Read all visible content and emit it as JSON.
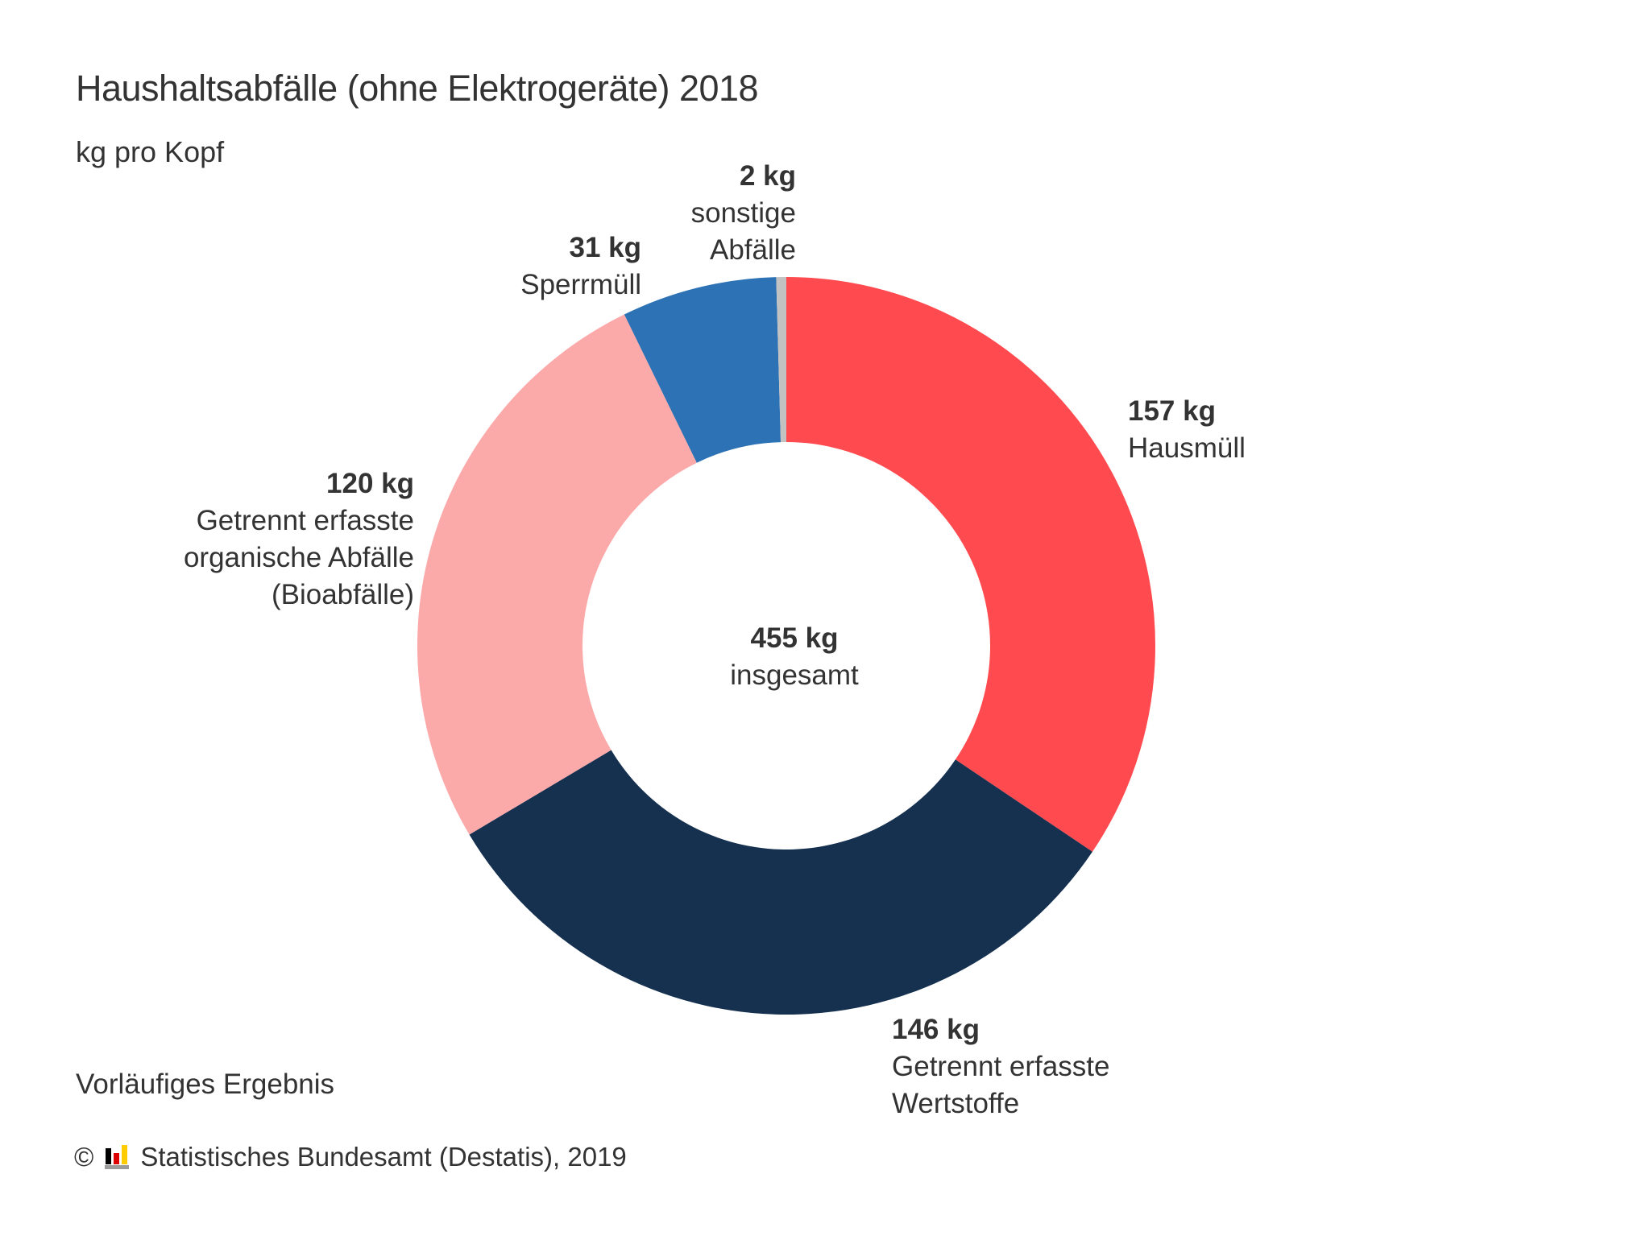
{
  "chart_data": {
    "type": "pie",
    "variant": "donut",
    "title": "Haushaltsabfälle (ohne Elektrogeräte) 2018",
    "subtitle": "kg pro Kopf",
    "unit": "kg",
    "start_angle": "12 o'clock, clockwise",
    "total": {
      "value": 455,
      "value_label": "455 kg",
      "label": "insgesamt"
    },
    "slices": [
      {
        "name": "Hausmüll",
        "value": 157,
        "value_label": "157 kg",
        "label_lines": [
          "Hausmüll"
        ],
        "color": "#FF4B4F"
      },
      {
        "name": "Getrennt erfasste Wertstoffe",
        "value": 146,
        "value_label": "146 kg",
        "label_lines": [
          "Getrennt erfasste",
          "Wertstoffe"
        ],
        "color": "#163150"
      },
      {
        "name": "Getrennt erfasste organische Abfälle (Bioabfälle)",
        "value": 120,
        "value_label": "120 kg",
        "label_lines": [
          "Getrennt erfasste",
          "organische Abfälle",
          "(Bioabfälle)"
        ],
        "color": "#FCA9AA"
      },
      {
        "name": "Sperrmüll",
        "value": 31,
        "value_label": "31 kg",
        "label_lines": [
          "Sperrmüll"
        ],
        "color": "#2C72B4"
      },
      {
        "name": "sonstige Abfälle",
        "value": 2,
        "value_label": "2 kg",
        "label_lines": [
          "sonstige",
          "Abfälle"
        ],
        "color": "#C2C2C2"
      }
    ],
    "legend": "none (direct labels)"
  },
  "footer": {
    "note": "Vorläufiges Ergebnis",
    "copyright_symbol": "©",
    "logo_icon": "destatis-logo-icon",
    "source": "Statistisches Bundesamt (Destatis), 2019"
  }
}
